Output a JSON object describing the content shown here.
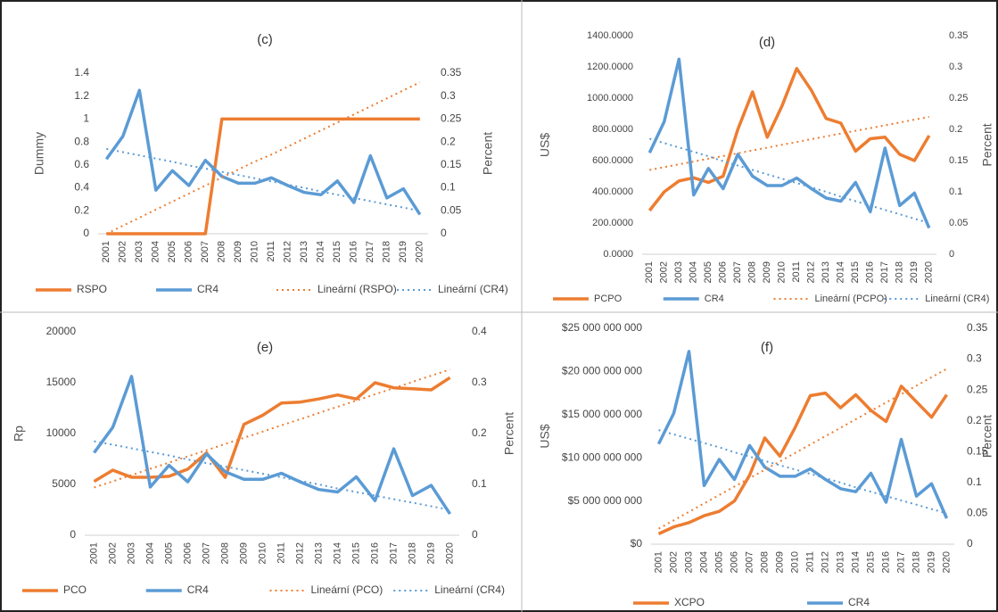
{
  "chart_data": [
    {
      "type": "line",
      "title": "(c)",
      "ylabel": "Dummy",
      "y2label": "Percent",
      "categories": [
        "2001",
        "2002",
        "2003",
        "2004",
        "2005",
        "2006",
        "2007",
        "2008",
        "2009",
        "2010",
        "2011",
        "2012",
        "2013",
        "2014",
        "2015",
        "2016",
        "2017",
        "2018",
        "2019",
        "2020"
      ],
      "ylim": [
        0,
        1.4
      ],
      "yticks": [
        0,
        0.2,
        0.4,
        0.6,
        0.8,
        1,
        1.2,
        1.4
      ],
      "y2lim": [
        0,
        0.35
      ],
      "y2ticks": [
        0,
        0.05,
        0.1,
        0.15,
        0.2,
        0.25,
        0.3,
        0.35
      ],
      "series": [
        {
          "name": "RSPO",
          "color": "#ed7d31",
          "style": "solid",
          "values": [
            0,
            0,
            0,
            0,
            0,
            0,
            0,
            1,
            1,
            1,
            1,
            1,
            1,
            1,
            1,
            1,
            1,
            1,
            1,
            1
          ]
        },
        {
          "name": "CR4",
          "color": "#5b9bd5",
          "style": "solid",
          "axis": "y2",
          "values": [
            0.1625,
            0.2125,
            0.3125,
            0.095,
            0.1375,
            0.105,
            0.16,
            0.125,
            0.11,
            0.11,
            0.122,
            0.105,
            0.09,
            0.085,
            0.115,
            0.068,
            0.17,
            0.078,
            0.098,
            0.042
          ]
        },
        {
          "name": "Lineární (RSPO)",
          "color": "#ed7d31",
          "style": "dotted",
          "values": [
            0,
            0.07,
            0.14,
            0.21,
            0.28,
            0.35,
            0.42,
            0.49,
            0.56,
            0.63,
            0.69,
            0.76,
            0.83,
            0.9,
            0.97,
            1.04,
            1.11,
            1.18,
            1.25,
            1.32
          ]
        },
        {
          "name": "Lineární (CR4)",
          "color": "#5b9bd5",
          "style": "dotted",
          "axis": "y2",
          "values": [
            0.185,
            0.178,
            0.171,
            0.164,
            0.157,
            0.149,
            0.142,
            0.135,
            0.128,
            0.121,
            0.114,
            0.107,
            0.1,
            0.092,
            0.085,
            0.078,
            0.071,
            0.064,
            0.057,
            0.05
          ]
        }
      ]
    },
    {
      "type": "line",
      "title": "(d)",
      "ylabel": "US$",
      "y2label": "Percent",
      "categories": [
        "2001",
        "2002",
        "2003",
        "2004",
        "2005",
        "2006",
        "2007",
        "2008",
        "2009",
        "2010",
        "2011",
        "2012",
        "2013",
        "2014",
        "2015",
        "2016",
        "2017",
        "2018",
        "2019",
        "2020"
      ],
      "ylim": [
        0,
        1400
      ],
      "yticks": [
        {
          "value": 0,
          "label": "0.0000"
        },
        {
          "value": 200,
          "label": "200.0000"
        },
        {
          "value": 400,
          "label": "400.0000"
        },
        {
          "value": 600,
          "label": "600.0000"
        },
        {
          "value": 800,
          "label": "800.0000"
        },
        {
          "value": 1000,
          "label": "1000.0000"
        },
        {
          "value": 1200,
          "label": "1200.0000"
        },
        {
          "value": 1400,
          "label": "1400.0000"
        }
      ],
      "y2lim": [
        0,
        0.35
      ],
      "y2ticks": [
        0,
        0.05,
        0.1,
        0.15,
        0.2,
        0.25,
        0.3,
        0.35
      ],
      "series": [
        {
          "name": "PCPO",
          "color": "#ed7d31",
          "style": "solid",
          "values": [
            280,
            400,
            470,
            490,
            460,
            500,
            800,
            1040,
            750,
            950,
            1190,
            1050,
            870,
            840,
            660,
            740,
            750,
            640,
            600,
            760
          ]
        },
        {
          "name": "CR4",
          "color": "#5b9bd5",
          "style": "solid",
          "axis": "y2",
          "values": [
            0.1625,
            0.2125,
            0.3125,
            0.095,
            0.1375,
            0.105,
            0.16,
            0.125,
            0.11,
            0.11,
            0.122,
            0.105,
            0.09,
            0.085,
            0.115,
            0.068,
            0.17,
            0.078,
            0.098,
            0.042
          ]
        },
        {
          "name": "Lineární (PCPO)",
          "color": "#ed7d31",
          "style": "dotted",
          "values": [
            540,
            558,
            576,
            594,
            612,
            629,
            647,
            665,
            683,
            701,
            719,
            737,
            755,
            773,
            791,
            808,
            826,
            844,
            862,
            880
          ]
        },
        {
          "name": "Lineární (CR4)",
          "color": "#5b9bd5",
          "style": "dotted",
          "axis": "y2",
          "values": [
            0.185,
            0.178,
            0.171,
            0.164,
            0.157,
            0.149,
            0.142,
            0.135,
            0.128,
            0.121,
            0.114,
            0.107,
            0.1,
            0.092,
            0.085,
            0.078,
            0.071,
            0.064,
            0.057,
            0.05
          ]
        }
      ]
    },
    {
      "type": "line",
      "title": "(e)",
      "ylabel": "Rp",
      "y2label": "Percent",
      "categories": [
        "2001",
        "2002",
        "2003",
        "2004",
        "2005",
        "2006",
        "2007",
        "2008",
        "2009",
        "2010",
        "2011",
        "2012",
        "2013",
        "2014",
        "2015",
        "2016",
        "2017",
        "2018",
        "2019",
        "2020"
      ],
      "ylim": [
        0,
        20000
      ],
      "yticks": [
        0,
        5000,
        10000,
        15000,
        20000
      ],
      "y2lim": [
        0,
        0.4
      ],
      "y2ticks": [
        0,
        0.1,
        0.2,
        0.3,
        0.4
      ],
      "series": [
        {
          "name": "PCO",
          "color": "#ed7d31",
          "style": "solid",
          "values": [
            5300,
            6400,
            5700,
            5700,
            5800,
            6500,
            8100,
            5700,
            10900,
            11800,
            13000,
            13100,
            13400,
            13800,
            13400,
            15000,
            14500,
            14400,
            14300,
            15500
          ]
        },
        {
          "name": "CR4",
          "color": "#5b9bd5",
          "style": "solid",
          "axis": "y2",
          "values": [
            0.1625,
            0.2125,
            0.3125,
            0.095,
            0.1375,
            0.105,
            0.16,
            0.125,
            0.11,
            0.11,
            0.122,
            0.105,
            0.09,
            0.085,
            0.115,
            0.068,
            0.17,
            0.078,
            0.098,
            0.042
          ]
        },
        {
          "name": "Lineární (PCO)",
          "color": "#ed7d31",
          "style": "dotted",
          "values": [
            4700,
            5311,
            5921,
            6532,
            7142,
            7753,
            8363,
            8974,
            9584,
            10195,
            10805,
            11416,
            12026,
            12637,
            13247,
            13858,
            14468,
            15079,
            15689,
            16300
          ]
        },
        {
          "name": "Lineární (CR4)",
          "color": "#5b9bd5",
          "style": "dotted",
          "axis": "y2",
          "values": [
            0.185,
            0.178,
            0.171,
            0.164,
            0.157,
            0.149,
            0.142,
            0.135,
            0.128,
            0.121,
            0.114,
            0.107,
            0.1,
            0.092,
            0.085,
            0.078,
            0.071,
            0.064,
            0.057,
            0.05
          ]
        }
      ]
    },
    {
      "type": "line",
      "title": "(f)",
      "ylabel": "US$",
      "y2label": "Percent",
      "categories": [
        "2001",
        "2002",
        "2003",
        "2004",
        "2005",
        "2006",
        "2007",
        "2008",
        "2009",
        "2010",
        "2011",
        "2012",
        "2013",
        "2014",
        "2015",
        "2016",
        "2017",
        "2018",
        "2019",
        "2020"
      ],
      "ylim": [
        0,
        25000000000
      ],
      "yticks": [
        {
          "value": 0,
          "label": "$0"
        },
        {
          "value": 5000000000,
          "label": "$5 000 000 000"
        },
        {
          "value": 10000000000,
          "label": "$10 000 000 000"
        },
        {
          "value": 15000000000,
          "label": "$15 000 000 000"
        },
        {
          "value": 20000000000,
          "label": "$20 000 000 000"
        },
        {
          "value": 25000000000,
          "label": "$25 000 000 000"
        }
      ],
      "y2lim": [
        0,
        0.35
      ],
      "y2ticks": [
        0,
        0.05,
        0.1,
        0.15,
        0.2,
        0.25,
        0.3,
        0.35
      ],
      "series": [
        {
          "name": "XCPO",
          "color": "#ed7d31",
          "style": "solid",
          "values": [
            1200000000,
            2000000000,
            2500000000,
            3300000000,
            3800000000,
            5000000000,
            8000000000,
            12300000000,
            10200000000,
            13500000000,
            17200000000,
            17500000000,
            15800000000,
            17300000000,
            15500000000,
            14200000000,
            18300000000,
            16500000000,
            14700000000,
            17300000000
          ]
        },
        {
          "name": "CR4",
          "color": "#5b9bd5",
          "style": "solid",
          "axis": "y2",
          "values": [
            0.1625,
            0.2125,
            0.3125,
            0.095,
            0.1375,
            0.105,
            0.16,
            0.125,
            0.11,
            0.11,
            0.122,
            0.105,
            0.09,
            0.085,
            0.115,
            0.068,
            0.17,
            0.078,
            0.098,
            0.042
          ]
        },
        {
          "color": "#ed7d31",
          "style": "dotted",
          "values": [
            1800000000,
            2770000000,
            3750000000,
            4720000000,
            5690000000,
            6670000000,
            7640000000,
            8620000000,
            9590000000,
            10560000000,
            11540000000,
            12510000000,
            13480000000,
            14460000000,
            15430000000,
            16410000000,
            17380000000,
            18350000000,
            19330000000,
            20300000000
          ]
        },
        {
          "color": "#5b9bd5",
          "style": "dotted",
          "axis": "y2",
          "values": [
            0.185,
            0.178,
            0.171,
            0.164,
            0.157,
            0.149,
            0.142,
            0.135,
            0.128,
            0.121,
            0.114,
            0.107,
            0.1,
            0.092,
            0.085,
            0.078,
            0.071,
            0.064,
            0.057,
            0.05
          ]
        }
      ]
    }
  ]
}
